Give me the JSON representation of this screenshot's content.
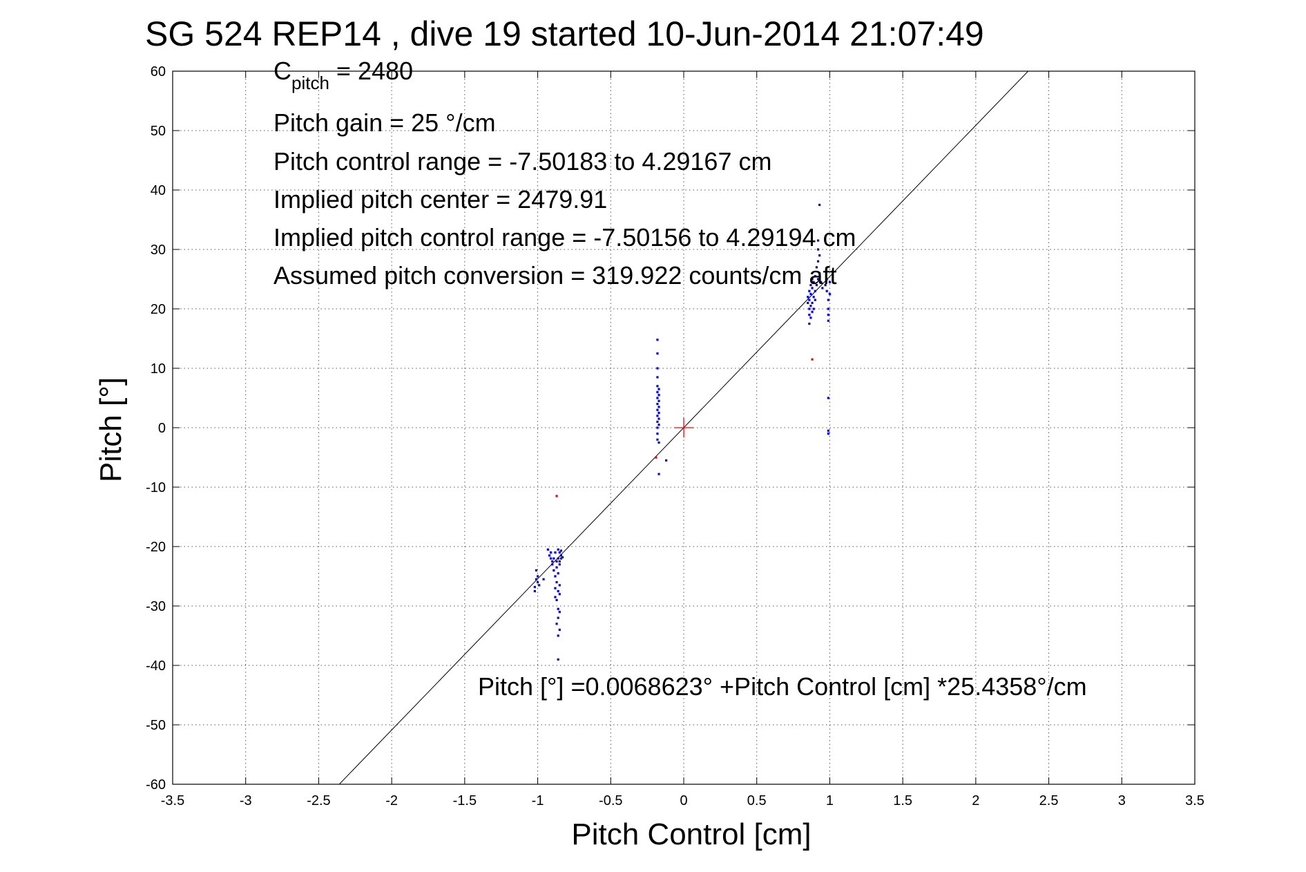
{
  "chart_data": {
    "type": "scatter",
    "title": "SG 524   REP14  , dive 19 started 10-Jun-2014 21:07:49",
    "xlabel": "Pitch Control [cm]",
    "ylabel": "Pitch [°]",
    "xlim": [
      -3.5,
      3.5
    ],
    "ylim": [
      -60,
      60
    ],
    "x_ticks": [
      -3.5,
      -3,
      -2.5,
      -2,
      -1.5,
      -1,
      -0.5,
      0,
      0.5,
      1,
      1.5,
      2,
      2.5,
      3,
      3.5
    ],
    "x_tick_labels": [
      "-3.5",
      "-3",
      "-2.5",
      "-2",
      "-1.5",
      "-1",
      "-0.5",
      "0",
      "0.5",
      "1",
      "1.5",
      "2",
      "2.5",
      "3",
      "3.5"
    ],
    "y_ticks": [
      60,
      50,
      40,
      30,
      20,
      10,
      0,
      -10,
      -20,
      -30,
      -40,
      -50,
      -60
    ],
    "y_tick_labels": [
      "60",
      "50",
      "40",
      "30",
      "20",
      "10",
      "0",
      "-10",
      "-20",
      "-30",
      "-40",
      "-50",
      "-60"
    ],
    "grid": true,
    "colors": {
      "data": "#0000ff",
      "outlier": "#ff0000",
      "fit": "#000000",
      "center": "#ff0000"
    },
    "annotations": {
      "c_pitch_main": "C",
      "c_pitch_sub": "pitch",
      "c_pitch_value": " = 2480",
      "pitch_gain": "Pitch gain = 25 °/cm",
      "pitch_control_range": "Pitch control range = -7.50183 to 4.29167 cm",
      "implied_center": "Implied pitch center = 2479.91",
      "implied_range": "Implied pitch control range = -7.50156 to 4.29194 cm",
      "assumed_conversion": "Assumed pitch conversion = 319.922 counts/cm aft",
      "fit_equation": "Pitch [°] =0.0068623° +Pitch Control [cm] *25.4358°/cm"
    },
    "fit_line": {
      "intercept": 0.0068623,
      "slope": 25.4358
    },
    "center_marker": {
      "x": 0,
      "y": 0
    },
    "series": [
      {
        "values": [
          [
            -1.02,
            -27.5
          ],
          [
            -1.02,
            -26.8
          ],
          [
            -1.01,
            -25.5
          ],
          [
            -1.01,
            -24.0
          ],
          [
            -1.0,
            -26.0
          ],
          [
            -1.0,
            -25.0
          ],
          [
            -0.99,
            -26.5
          ],
          [
            -0.96,
            -25.5
          ],
          [
            -0.93,
            -20.5
          ],
          [
            -0.92,
            -21.5
          ],
          [
            -0.91,
            -22.0
          ],
          [
            -0.91,
            -21.0
          ],
          [
            -0.9,
            -23.0
          ],
          [
            -0.9,
            -22.5
          ],
          [
            -0.89,
            -24.0
          ],
          [
            -0.89,
            -22.0
          ],
          [
            -0.88,
            -21.0
          ],
          [
            -0.88,
            -25.0
          ],
          [
            -0.88,
            -27.0
          ],
          [
            -0.88,
            -28.5
          ],
          [
            -0.87,
            -22.5
          ],
          [
            -0.87,
            -23.5
          ],
          [
            -0.87,
            -26.0
          ],
          [
            -0.87,
            -29.0
          ],
          [
            -0.87,
            -33.0
          ],
          [
            -0.86,
            -20.5
          ],
          [
            -0.86,
            -22.0
          ],
          [
            -0.86,
            -24.5
          ],
          [
            -0.86,
            -27.5
          ],
          [
            -0.86,
            -30.5
          ],
          [
            -0.86,
            -32.0
          ],
          [
            -0.86,
            -35.0
          ],
          [
            -0.86,
            -39.0
          ],
          [
            -0.85,
            -21.0
          ],
          [
            -0.85,
            -22.5
          ],
          [
            -0.85,
            -23.0
          ],
          [
            -0.85,
            -26.5
          ],
          [
            -0.85,
            -28.0
          ],
          [
            -0.85,
            -31.0
          ],
          [
            -0.85,
            -34.0
          ],
          [
            -0.84,
            -21.5
          ],
          [
            -0.84,
            -22.0
          ],
          [
            -0.84,
            -20.7
          ],
          [
            -0.83,
            -21.8
          ],
          [
            -0.18,
            14.8
          ],
          [
            -0.18,
            12.5
          ],
          [
            -0.18,
            10.0
          ],
          [
            -0.18,
            8.5
          ],
          [
            -0.18,
            7.0
          ],
          [
            -0.18,
            6.0
          ],
          [
            -0.18,
            5.0
          ],
          [
            -0.18,
            4.0
          ],
          [
            -0.18,
            3.0
          ],
          [
            -0.18,
            2.0
          ],
          [
            -0.18,
            1.0
          ],
          [
            -0.18,
            0.0
          ],
          [
            -0.18,
            -1.0
          ],
          [
            -0.18,
            -2.0
          ],
          [
            -0.17,
            6.5
          ],
          [
            -0.17,
            5.5
          ],
          [
            -0.17,
            4.5
          ],
          [
            -0.17,
            3.5
          ],
          [
            -0.17,
            2.5
          ],
          [
            -0.17,
            1.5
          ],
          [
            -0.17,
            0.5
          ],
          [
            -0.17,
            -2.5
          ],
          [
            -0.17,
            -7.8
          ],
          [
            -0.12,
            -5.5
          ],
          [
            0.85,
            21.0
          ],
          [
            0.85,
            22.0
          ],
          [
            0.86,
            19.0
          ],
          [
            0.86,
            20.0
          ],
          [
            0.86,
            21.5
          ],
          [
            0.86,
            23.0
          ],
          [
            0.86,
            17.5
          ],
          [
            0.87,
            18.5
          ],
          [
            0.87,
            20.5
          ],
          [
            0.87,
            22.5
          ],
          [
            0.87,
            24.0
          ],
          [
            0.88,
            19.5
          ],
          [
            0.88,
            21.0
          ],
          [
            0.88,
            23.5
          ],
          [
            0.88,
            25.0
          ],
          [
            0.89,
            20.0
          ],
          [
            0.89,
            22.0
          ],
          [
            0.89,
            24.5
          ],
          [
            0.9,
            21.5
          ],
          [
            0.9,
            23.0
          ],
          [
            0.9,
            25.5
          ],
          [
            0.91,
            24.0
          ],
          [
            0.91,
            27.0
          ],
          [
            0.92,
            25.0
          ],
          [
            0.92,
            28.0
          ],
          [
            0.92,
            30.0
          ],
          [
            0.92,
            31.5
          ],
          [
            0.93,
            26.0
          ],
          [
            0.93,
            29.0
          ],
          [
            0.93,
            37.5
          ],
          [
            0.94,
            24.5
          ],
          [
            0.95,
            23.5
          ],
          [
            0.97,
            24.0
          ],
          [
            0.98,
            23.0
          ],
          [
            0.98,
            25.0
          ],
          [
            0.99,
            21.5
          ],
          [
            0.99,
            20.0
          ],
          [
            0.99,
            19.0
          ],
          [
            0.99,
            18.0
          ],
          [
            1.0,
            24.5
          ],
          [
            1.0,
            22.5
          ],
          [
            0.99,
            5.0
          ],
          [
            0.99,
            -0.5
          ],
          [
            0.99,
            -1.0
          ]
        ]
      },
      {
        "values": [
          [
            -0.87,
            -11.5
          ],
          [
            -0.19,
            -5.0
          ],
          [
            0.88,
            11.5
          ]
        ]
      }
    ]
  }
}
